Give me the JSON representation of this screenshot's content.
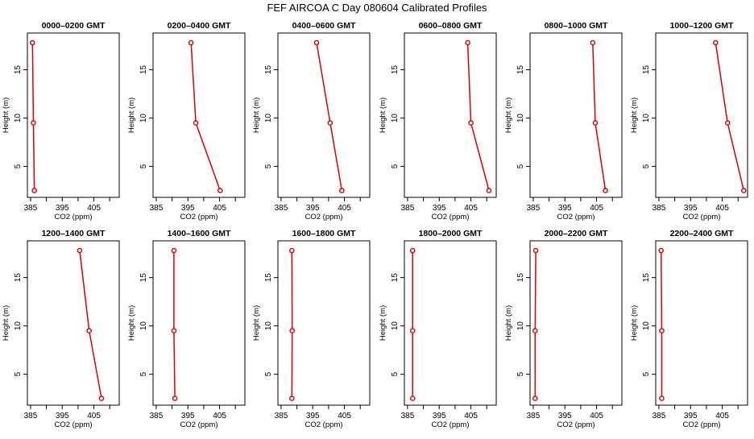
{
  "title": "FEF AIRCOA C  Day 080604  Calibrated Profiles",
  "colors": {
    "profile": "#dd0000",
    "axis": "#000000"
  },
  "chart_data": {
    "type": "line",
    "layout": "2x6 small multiples",
    "xlabel": "CO2 (ppm)",
    "ylabel": "Height (m)",
    "xlim": [
      384,
      413
    ],
    "ylim": [
      1.8,
      18.8
    ],
    "xticks": [
      385,
      395,
      405
    ],
    "xticks_unlabeled": [
      390,
      400,
      410
    ],
    "yticks": [
      5,
      10,
      15
    ],
    "grid": false,
    "panels": [
      {
        "title": "0000–0200 GMT",
        "points": [
          {
            "x": 385.6,
            "y": 17.8
          },
          {
            "x": 385.9,
            "y": 9.5
          },
          {
            "x": 386.2,
            "y": 2.5
          }
        ]
      },
      {
        "title": "0200–0400 GMT",
        "points": [
          {
            "x": 396.0,
            "y": 17.8
          },
          {
            "x": 397.5,
            "y": 9.5
          },
          {
            "x": 405.2,
            "y": 2.5
          }
        ]
      },
      {
        "title": "0400–0600 GMT",
        "points": [
          {
            "x": 396.2,
            "y": 17.8
          },
          {
            "x": 400.5,
            "y": 9.5
          },
          {
            "x": 404.2,
            "y": 2.5
          }
        ]
      },
      {
        "title": "0600–0800 GMT",
        "points": [
          {
            "x": 404.0,
            "y": 17.8
          },
          {
            "x": 405.0,
            "y": 9.5
          },
          {
            "x": 410.7,
            "y": 2.5
          }
        ]
      },
      {
        "title": "0800–1000 GMT",
        "points": [
          {
            "x": 403.8,
            "y": 17.8
          },
          {
            "x": 404.6,
            "y": 9.5
          },
          {
            "x": 407.8,
            "y": 2.5
          }
        ]
      },
      {
        "title": "1000–1200 GMT",
        "points": [
          {
            "x": 402.9,
            "y": 17.8
          },
          {
            "x": 406.7,
            "y": 9.5
          },
          {
            "x": 411.8,
            "y": 2.5
          }
        ]
      },
      {
        "title": "1200–1400 GMT",
        "points": [
          {
            "x": 400.5,
            "y": 17.8
          },
          {
            "x": 403.5,
            "y": 9.5
          },
          {
            "x": 407.4,
            "y": 2.5
          }
        ]
      },
      {
        "title": "1400–1600 GMT",
        "points": [
          {
            "x": 390.6,
            "y": 17.8
          },
          {
            "x": 390.6,
            "y": 9.5
          },
          {
            "x": 390.9,
            "y": 2.5
          }
        ]
      },
      {
        "title": "1600–1800 GMT",
        "points": [
          {
            "x": 388.4,
            "y": 17.8
          },
          {
            "x": 388.5,
            "y": 9.5
          },
          {
            "x": 388.4,
            "y": 2.5
          }
        ]
      },
      {
        "title": "1800–2000 GMT",
        "points": [
          {
            "x": 386.6,
            "y": 17.8
          },
          {
            "x": 386.6,
            "y": 9.5
          },
          {
            "x": 386.6,
            "y": 2.5
          }
        ]
      },
      {
        "title": "2000–2200 GMT",
        "points": [
          {
            "x": 385.8,
            "y": 17.8
          },
          {
            "x": 385.6,
            "y": 9.5
          },
          {
            "x": 385.6,
            "y": 2.5
          }
        ]
      },
      {
        "title": "2200–2400 GMT",
        "points": [
          {
            "x": 385.7,
            "y": 17.8
          },
          {
            "x": 385.9,
            "y": 9.5
          },
          {
            "x": 385.9,
            "y": 2.5
          }
        ]
      }
    ]
  }
}
